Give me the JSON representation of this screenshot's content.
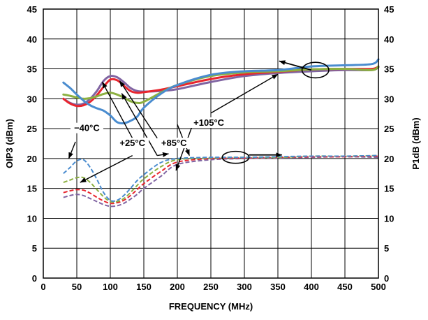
{
  "chart_data": {
    "type": "line",
    "xlabel": "FREQUENCY (MHz)",
    "ylabel": "OIP3 (dBm)",
    "y2label": "P1dB (dBm)",
    "xlim": [
      0,
      500
    ],
    "ylim": [
      0,
      45
    ],
    "y2lim": [
      0,
      45
    ],
    "xticks": [
      0,
      50,
      100,
      150,
      200,
      250,
      300,
      350,
      400,
      450,
      500
    ],
    "yticks": [
      0,
      5,
      10,
      15,
      20,
      25,
      30,
      35,
      40,
      45
    ],
    "grid": true,
    "series": [
      {
        "group": "OIP3",
        "axis": "left",
        "style": "solid",
        "color": "#8064a2",
        "x": [
          30,
          40,
          50,
          60,
          70,
          80,
          90,
          100,
          110,
          120,
          130,
          140,
          150,
          175,
          200,
          250,
          300,
          350,
          400,
          450,
          490,
          500
        ],
        "values": [
          30.0,
          29.3,
          29.0,
          29.2,
          30.0,
          31.3,
          33.0,
          33.8,
          33.6,
          32.8,
          31.8,
          31.3,
          31.2,
          31.3,
          31.6,
          32.8,
          33.8,
          34.3,
          34.6,
          34.8,
          34.8,
          35.3
        ]
      },
      {
        "group": "OIP3",
        "axis": "left",
        "style": "solid",
        "color": "#e8252e",
        "x": [
          30,
          40,
          50,
          60,
          70,
          80,
          90,
          100,
          110,
          120,
          130,
          140,
          150,
          175,
          200,
          250,
          300,
          350,
          400,
          450,
          490,
          500
        ],
        "values": [
          30.0,
          29.2,
          28.8,
          28.9,
          29.5,
          30.6,
          32.0,
          33.2,
          33.1,
          32.2,
          31.3,
          31.0,
          31.1,
          31.5,
          32.1,
          33.3,
          34.1,
          34.5,
          34.9,
          35.0,
          35.0,
          35.4
        ]
      },
      {
        "group": "OIP3",
        "axis": "left",
        "style": "solid",
        "color": "#8cb040",
        "x": [
          30,
          40,
          50,
          60,
          70,
          80,
          90,
          100,
          110,
          120,
          130,
          140,
          150,
          175,
          200,
          250,
          300,
          350,
          400,
          450,
          490,
          500
        ],
        "values": [
          30.7,
          30.5,
          30.2,
          30.0,
          30.1,
          30.4,
          30.8,
          31.0,
          30.7,
          30.2,
          29.6,
          29.3,
          29.5,
          31.0,
          32.3,
          33.8,
          34.4,
          34.6,
          34.9,
          35.0,
          34.8,
          35.4
        ]
      },
      {
        "group": "OIP3",
        "axis": "left",
        "style": "solid",
        "color": "#4a8ccf",
        "x": [
          30,
          40,
          50,
          60,
          70,
          80,
          90,
          100,
          110,
          120,
          130,
          140,
          150,
          175,
          200,
          250,
          300,
          350,
          400,
          450,
          490,
          500
        ],
        "values": [
          32.7,
          31.8,
          30.7,
          29.7,
          28.9,
          28.4,
          28.0,
          27.2,
          26.1,
          25.9,
          26.3,
          27.0,
          28.5,
          30.8,
          32.3,
          34.0,
          34.6,
          34.8,
          35.4,
          35.6,
          35.8,
          36.6
        ]
      },
      {
        "group": "P1dB",
        "axis": "right",
        "style": "dashed",
        "color": "#8064a2",
        "x": [
          30,
          40,
          50,
          60,
          70,
          80,
          90,
          100,
          110,
          120,
          130,
          140,
          150,
          175,
          200,
          250,
          300,
          350,
          400,
          450,
          500
        ],
        "values": [
          13.5,
          13.8,
          14.0,
          13.8,
          13.3,
          12.8,
          12.3,
          12.0,
          12.1,
          12.5,
          13.2,
          14.0,
          15.0,
          17.0,
          19.0,
          19.8,
          20.0,
          20.1,
          20.2,
          20.3,
          20.2
        ]
      },
      {
        "group": "P1dB",
        "axis": "right",
        "style": "dashed",
        "color": "#e8252e",
        "x": [
          30,
          40,
          50,
          60,
          70,
          80,
          90,
          100,
          110,
          120,
          130,
          140,
          150,
          175,
          200,
          250,
          300,
          350,
          400,
          450,
          500
        ],
        "values": [
          14.3,
          14.6,
          14.8,
          14.7,
          14.2,
          13.5,
          12.9,
          12.5,
          12.6,
          13.0,
          13.8,
          14.8,
          15.8,
          17.8,
          19.4,
          20.0,
          20.1,
          20.2,
          20.3,
          20.3,
          20.4
        ]
      },
      {
        "group": "P1dB",
        "axis": "right",
        "style": "dashed",
        "color": "#8cb040",
        "x": [
          30,
          40,
          50,
          60,
          70,
          80,
          90,
          100,
          110,
          120,
          130,
          140,
          150,
          175,
          200,
          250,
          300,
          350,
          400,
          450,
          500
        ],
        "values": [
          16.0,
          16.4,
          16.8,
          16.8,
          16.0,
          14.8,
          13.6,
          12.8,
          12.8,
          13.3,
          14.3,
          15.5,
          16.6,
          18.6,
          19.8,
          20.1,
          20.2,
          20.2,
          20.4,
          20.4,
          20.5
        ]
      },
      {
        "group": "P1dB",
        "axis": "right",
        "style": "dashed",
        "color": "#4a8ccf",
        "x": [
          30,
          40,
          50,
          60,
          70,
          80,
          90,
          100,
          110,
          120,
          130,
          140,
          150,
          175,
          200,
          250,
          300,
          350,
          400,
          450,
          500
        ],
        "values": [
          17.5,
          18.5,
          19.6,
          19.8,
          18.5,
          16.5,
          14.3,
          13.0,
          13.0,
          13.8,
          15.0,
          16.3,
          17.3,
          19.3,
          20.0,
          20.2,
          20.2,
          20.3,
          20.4,
          20.4,
          20.5
        ]
      }
    ],
    "annotations": [
      {
        "text": "−40°C",
        "x": 65,
        "y": 24.7
      },
      {
        "text": "+25°C",
        "x": 133,
        "y": 22.2
      },
      {
        "text": "+85°C",
        "x": 195,
        "y": 22.2
      },
      {
        "text": "+105°C",
        "x": 247,
        "y": 25.6
      }
    ],
    "callouts": [
      {
        "ellipse_center": [
          406,
          34.8
        ],
        "ellipse_radius": [
          20,
          1.3
        ],
        "arrow_from": [
          400,
          34.8
        ],
        "arrow_to": [
          352,
          36.3
        ]
      },
      {
        "ellipse_center": [
          287,
          20.2
        ],
        "ellipse_radius": [
          20,
          1.0
        ],
        "arrow_from": [
          307,
          20.6
        ],
        "arrow_to": [
          356,
          20.6
        ]
      }
    ],
    "pointers": [
      {
        "from": [
          48,
          22.8
        ],
        "to": [
          38,
          20.0
        ]
      },
      {
        "from": [
          133,
          23.4
        ],
        "to": [
          88,
          32.8
        ]
      },
      {
        "from": [
          133,
          20.5
        ],
        "to": [
          55,
          16.0
        ]
      },
      {
        "from": [
          170,
          23.4
        ],
        "to": [
          114,
          33.0
        ]
      },
      {
        "from": [
          170,
          20.5
        ],
        "to": [
          117,
          30.9
        ]
      },
      {
        "from": [
          170,
          20.5
        ],
        "to": [
          187,
          20.8
        ]
      },
      {
        "from": [
          200,
          25.7
        ],
        "to": [
          218,
          20.5
        ]
      },
      {
        "from": [
          223,
          25.7
        ],
        "to": [
          198,
          18.0
        ]
      },
      {
        "from": [
          250,
          27.6
        ],
        "to": [
          350,
          34.1
        ]
      }
    ]
  }
}
